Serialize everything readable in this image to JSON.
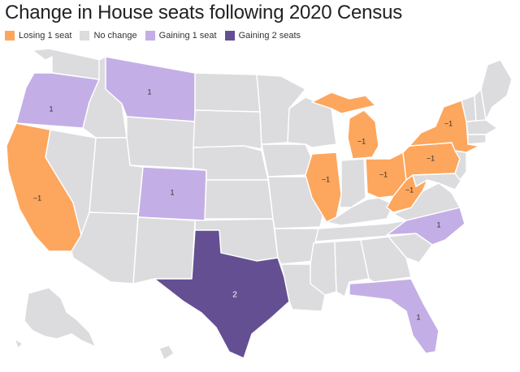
{
  "title": "Change in House seats following 2020 Census",
  "legend": [
    {
      "label": "Losing 1 seat",
      "color": "#FDA65D"
    },
    {
      "label": "No change",
      "color": "#DCDCDF"
    },
    {
      "label": "Gaining 1 seat",
      "color": "#C3AFE6"
    },
    {
      "label": "Gaining 2 seats",
      "color": "#654F93"
    }
  ],
  "colors": {
    "losing_1": "#FDA65D",
    "no_change": "#DCDCDF",
    "gaining_1": "#C3AFE6",
    "gaining_2": "#654F93",
    "border": "#FFFFFF"
  },
  "states": {
    "oregon": {
      "change": "1"
    },
    "california": {
      "change": "−1"
    },
    "montana": {
      "change": "1"
    },
    "colorado": {
      "change": "1"
    },
    "texas": {
      "change": "2"
    },
    "illinois": {
      "change": "−1"
    },
    "michigan": {
      "change": "−1"
    },
    "ohio": {
      "change": "−1"
    },
    "west_virginia": {
      "change": "−1"
    },
    "pennsylvania": {
      "change": "−1"
    },
    "new_york": {
      "change": "−1"
    },
    "north_carolina": {
      "change": "1"
    },
    "florida": {
      "change": "1"
    }
  }
}
